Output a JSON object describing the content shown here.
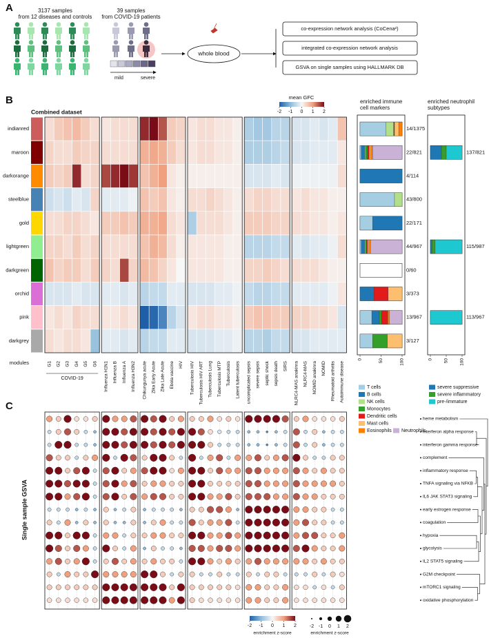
{
  "panel_labels": {
    "a": "A",
    "b": "B",
    "c": "C"
  },
  "panel_a": {
    "cohorts": [
      {
        "count": "3137 samples",
        "detail": "from 12 diseases and controls"
      },
      {
        "count": "39 samples",
        "detail": "from COVID-19 patients"
      }
    ],
    "severity": [
      "mild",
      "severe"
    ],
    "source": "whole blood",
    "analyses": [
      "co-expression network analysis (CoCena²)",
      "integrated co-expression network analysis",
      "GSVA on single samples using HALLMARK DB"
    ]
  },
  "panel_b": {
    "title": "Combined dataset",
    "colorbar": {
      "title": "mean GFC",
      "ticks": [
        -2,
        -1,
        0,
        1,
        2
      ]
    },
    "modules": [
      "indianred",
      "maroon",
      "darkorange",
      "steelblue",
      "gold",
      "lightgreen",
      "darkgreen",
      "orchid",
      "pink",
      "darkgrey"
    ],
    "modules_label": "modules",
    "covid_label": "COVID-19",
    "columns": [
      [
        "G1",
        "G2",
        "G3",
        "G4",
        "G5",
        "G6"
      ],
      [
        "Influenza H1N1",
        "Influenza B",
        "Influenza A",
        "Influenza H3N2"
      ],
      [
        "Chikungunya acute",
        "Zika Early Acute",
        "Zika Late Acute",
        "Ebola vaccine",
        "HIV"
      ],
      [
        "Tuberculosis HIV",
        "Tuberculosis HIV ART",
        "Tuberculosis Lung",
        "Tuberculosis MTP",
        "Tuberculosis",
        "Latent tuberculosis"
      ],
      [
        "uncomplicated sepsis",
        "severe sepsis",
        "septic shock",
        "sepsis death",
        "SIRS"
      ],
      [
        "NLRC4-MAS anakinra",
        "NLRC4-MAS",
        "NOMID anakinra",
        "NOMID",
        "Rheumatoid arthritis",
        "Autoimmune disease"
      ]
    ],
    "gfc": [
      [
        0.3,
        0.5,
        0.6,
        0.7,
        0.5,
        0.3,
        0.2,
        0.3,
        0.3,
        0.3,
        1.8,
        2,
        1.5,
        0.5,
        0.4,
        0.2,
        0.3,
        0.3,
        0.2,
        0.2,
        0.1,
        -0.7,
        -0.8,
        -0.8,
        -0.6,
        -0.6,
        -0.3,
        -0.3,
        -0.2,
        -0.3,
        -0.2,
        0.6
      ],
      [
        0.4,
        0.3,
        0.3,
        0.5,
        0.4,
        0.4,
        0.3,
        0.3,
        0.3,
        0.3,
        0.8,
        0.9,
        0.8,
        0.5,
        0.3,
        0.2,
        0.3,
        0.3,
        0.2,
        0.2,
        0.1,
        -0.7,
        -0.7,
        -0.7,
        -0.6,
        -0.5,
        -0.3,
        -0.3,
        -0.2,
        -0.2,
        -0.2,
        0.2
      ],
      [
        0.5,
        0.4,
        0.5,
        1.8,
        0.3,
        0.4,
        1.6,
        1.8,
        2.0,
        1.7,
        0.6,
        0.8,
        1.0,
        0.2,
        0.1,
        0.1,
        0.1,
        0.1,
        0.1,
        0.1,
        0.1,
        -0.3,
        -0.3,
        -0.3,
        -0.2,
        -0.3,
        -0.1,
        -0.1,
        -0.1,
        -0.1,
        -0.1,
        0.3
      ],
      [
        -0.4,
        -0.3,
        -0.4,
        -0.2,
        -0.3,
        0.4,
        -0.2,
        -0.2,
        -0.2,
        -0.1,
        0.6,
        0.5,
        0.6,
        0.2,
        0.1,
        0.3,
        0.3,
        0.4,
        0.3,
        0.2,
        0.1,
        0.3,
        0.4,
        0.4,
        0.3,
        0.3,
        0.2,
        0.3,
        0.2,
        0.2,
        0.1,
        0.1
      ],
      [
        0.3,
        0.3,
        0.4,
        0.4,
        0.3,
        0.2,
        0.5,
        0.5,
        0.6,
        0.5,
        0.8,
        0.8,
        0.9,
        0.3,
        0.2,
        -0.7,
        0.3,
        0.3,
        0.3,
        0.2,
        0.1,
        0.5,
        0.5,
        0.5,
        0.4,
        0.4,
        0.3,
        0.3,
        0.2,
        0.2,
        0.1,
        0.2
      ],
      [
        0.4,
        0.4,
        0.3,
        0.5,
        0.3,
        0.4,
        0.3,
        0.3,
        0.3,
        0.3,
        0.6,
        0.8,
        0.7,
        0.3,
        0.1,
        0.2,
        0.2,
        0.2,
        0.2,
        0.1,
        0.1,
        -0.6,
        -0.6,
        -0.6,
        -0.5,
        -0.5,
        -0.2,
        -0.3,
        -0.2,
        -0.2,
        -0.1,
        0.3
      ],
      [
        0.6,
        0.4,
        0.5,
        0.5,
        0.3,
        0.5,
        0.4,
        0.3,
        1.6,
        0.4,
        0.7,
        0.6,
        0.4,
        0.2,
        0.0,
        0.2,
        0.2,
        0.2,
        0.2,
        0.1,
        0.1,
        0.4,
        0.4,
        0.5,
        0.4,
        0.3,
        0.3,
        0.3,
        0.3,
        0.2,
        0.1,
        0.1
      ],
      [
        -0.3,
        -0.3,
        -0.3,
        -0.2,
        -0.3,
        -0.3,
        -0.2,
        -0.2,
        -0.3,
        -0.2,
        -0.6,
        -0.5,
        -0.5,
        -0.2,
        -0.2,
        -0.3,
        -0.3,
        -0.3,
        -0.2,
        -0.2,
        -0.1,
        -0.5,
        -0.6,
        -0.6,
        -0.5,
        -0.5,
        -0.2,
        -0.2,
        -0.2,
        -0.2,
        -0.1,
        0.2
      ],
      [
        0.2,
        0.3,
        0.2,
        0.4,
        0.3,
        0.3,
        0.2,
        0.2,
        0.3,
        0.2,
        -2.0,
        -1.9,
        -1.6,
        -0.6,
        -0.3,
        0.2,
        0.3,
        0.3,
        0.2,
        0.2,
        0.1,
        0.5,
        0.6,
        0.6,
        0.5,
        0.5,
        0.4,
        0.4,
        0.3,
        0.3,
        0.2,
        -0.3
      ],
      [
        0.3,
        0.2,
        0.3,
        0.3,
        0.2,
        -0.9,
        -0.2,
        -0.2,
        -0.3,
        -0.2,
        -0.6,
        -0.5,
        -0.5,
        -0.2,
        -0.2,
        -0.3,
        -0.3,
        -0.3,
        -0.2,
        -0.2,
        -0.1,
        -0.6,
        -0.6,
        -0.7,
        -0.5,
        -0.5,
        -0.3,
        -0.3,
        -0.2,
        -0.2,
        -0.2,
        -0.2
      ]
    ],
    "immune": {
      "title": "enriched immune cell markers",
      "axis_ticks": [
        0,
        50,
        100
      ],
      "cell_types": [
        {
          "name": "T cells",
          "color": "#a6cee3"
        },
        {
          "name": "B cells",
          "color": "#1f78b4"
        },
        {
          "name": "NK cells",
          "color": "#b2df8a"
        },
        {
          "name": "Monocytes",
          "color": "#33a02c"
        },
        {
          "name": "Dendritic cells",
          "color": "#e31a1c"
        },
        {
          "name": "Mast cells",
          "color": "#fdbf6f"
        },
        {
          "name": "Eosinophils",
          "color": "#ff7f00"
        },
        {
          "name": "Neutrophils",
          "color": "#cab2d6"
        }
      ],
      "counts": [
        "14/1375",
        "22/821",
        "4/114",
        "43/800",
        "22/171",
        "44/967",
        "0/60",
        "3/373",
        "13/967",
        "3/127"
      ],
      "fractions": [
        [
          62,
          0,
          18,
          0,
          2,
          10,
          8,
          0
        ],
        [
          3,
          8,
          2,
          5,
          4,
          4,
          4,
          70
        ],
        [
          0,
          100,
          0,
          0,
          0,
          0,
          0,
          0
        ],
        [
          82,
          0,
          18,
          0,
          0,
          0,
          0,
          0
        ],
        [
          30,
          70,
          0,
          0,
          0,
          0,
          0,
          0
        ],
        [
          3,
          8,
          2,
          3,
          2,
          3,
          4,
          75
        ],
        [
          0,
          0,
          0,
          0,
          0,
          0,
          0,
          0
        ],
        [
          0,
          33,
          0,
          0,
          34,
          33,
          0,
          0
        ],
        [
          28,
          18,
          0,
          5,
          15,
          0,
          4,
          30
        ],
        [
          30,
          0,
          0,
          35,
          0,
          35,
          0,
          0
        ]
      ]
    },
    "neutrophil": {
      "title": "enriched neutrophil subtypes",
      "axis_ticks": [
        0,
        50,
        100
      ],
      "subtypes": [
        {
          "name": "severe suppressive",
          "color": "#1f78b4"
        },
        {
          "name": "severe inflammatory",
          "color": "#33a02c"
        },
        {
          "name": "pre-/immature",
          "color": "#1ec8d0"
        }
      ],
      "counts": [
        null,
        "137/821",
        null,
        null,
        null,
        "115/987",
        null,
        null,
        "113/967",
        null
      ],
      "fractions": [
        null,
        [
          35,
          15,
          50
        ],
        null,
        null,
        null,
        [
          5,
          10,
          85
        ],
        null,
        null,
        [
          0,
          0,
          100
        ],
        null
      ]
    }
  },
  "panel_c": {
    "y_label": "Single sample GSVA",
    "pathways": [
      "heme metabolism",
      "interferon alpha response",
      "interferon gamma response",
      "complement",
      "inflammatory response",
      "TNFA signaling via NFKB",
      "IL6 JAK STAT3 signaling",
      "early estrogen response",
      "coagulation",
      "hypoxia",
      "glycolysis",
      "IL2 STAT5 signaling",
      "G2M checkpoint",
      "mTORC1 signaling",
      "oxidative phosphorylation"
    ],
    "zscores": [
      [
        1,
        0.5,
        2,
        0.3,
        0.3,
        0.5,
        2,
        1,
        1,
        1.5,
        2,
        1.5,
        2,
        0.5,
        1,
        0.5,
        0.5,
        1,
        0.3,
        0.5,
        0.3,
        2,
        2,
        2,
        2,
        1.5,
        0.5,
        1,
        0.3,
        0.3,
        0.3,
        0.5
      ],
      [
        -0.5,
        0.5,
        1.5,
        0.5,
        -0.5,
        -1,
        2,
        2,
        1.5,
        2,
        2,
        1.5,
        2,
        1.5,
        2,
        2,
        1.5,
        0.3,
        -0.3,
        -0.5,
        -0.5,
        -1,
        -1,
        -1.5,
        -1,
        -0.5,
        1.5,
        -0.5,
        0.5,
        -1,
        -0.5,
        -0.5
      ],
      [
        -0.5,
        2,
        2,
        -0.5,
        -0.5,
        -1,
        2,
        2,
        1.5,
        2,
        2,
        1.5,
        2,
        1.5,
        2,
        2,
        2,
        0.5,
        -0.5,
        -0.5,
        -0.5,
        -1,
        -1,
        -1.5,
        -1,
        -0.5,
        1.5,
        -0.5,
        0.5,
        -1,
        -0.5,
        -0.5
      ],
      [
        1.5,
        0.5,
        0.5,
        -0.5,
        0.5,
        1,
        2,
        -0.5,
        2,
        1.5,
        0.5,
        2,
        2,
        0.5,
        -0.5,
        2,
        -0.5,
        1,
        1.5,
        -0.5,
        1,
        1,
        1.5,
        0.5,
        1,
        1.5,
        2,
        0.5,
        -0.5,
        -0.5,
        0.5,
        0.5
      ],
      [
        2,
        2,
        0.5,
        1.5,
        2,
        -0.5,
        1.5,
        2,
        0.5,
        1,
        1.5,
        2,
        2,
        0.3,
        1,
        2,
        2,
        0.5,
        1.5,
        1,
        1,
        1.5,
        1.5,
        1,
        1,
        1,
        1.5,
        1,
        0.5,
        1,
        0.5,
        0.5
      ],
      [
        2,
        2,
        1.5,
        2,
        2,
        -0.5,
        1.5,
        2,
        1,
        1.5,
        0.5,
        1,
        1,
        0.5,
        0.5,
        2,
        2,
        0.5,
        0.5,
        0.5,
        0.5,
        1.5,
        1.5,
        1,
        1,
        1,
        1.5,
        1,
        1,
        1,
        1,
        0.5
      ],
      [
        2,
        2,
        1,
        1.5,
        2,
        -0.5,
        1.5,
        2,
        0.5,
        1.5,
        1,
        1.5,
        1.5,
        0.5,
        0.5,
        2,
        2,
        1,
        1,
        1.5,
        0.5,
        1.5,
        1.5,
        1.5,
        1,
        1,
        1.5,
        1,
        1,
        0.5,
        0.5,
        0.5
      ],
      [
        -0.5,
        -0.5,
        -0.5,
        -1,
        -0.5,
        -1,
        0.5,
        -1,
        -0.5,
        0.5,
        -1,
        -0.5,
        -0.5,
        -0.5,
        -1,
        0.5,
        0.5,
        1.5,
        1.5,
        1,
        -1,
        2,
        2,
        2,
        2,
        2,
        1,
        1,
        0.5,
        0.5,
        -0.5,
        -0.5
      ],
      [
        0.5,
        -0.5,
        1,
        -1,
        0.5,
        -1,
        0.5,
        -1,
        -1,
        0.5,
        -1,
        0.5,
        1,
        -0.5,
        -0.5,
        1.5,
        0.5,
        1,
        1,
        1.5,
        -0.5,
        2,
        2,
        2,
        2,
        2,
        1,
        1.5,
        0.5,
        0.5,
        -0.5,
        -0.5
      ],
      [
        2,
        2,
        0.5,
        2,
        2,
        -0.5,
        1,
        1,
        -0.5,
        0.5,
        0.5,
        1,
        1,
        0.5,
        0.5,
        2,
        2,
        1,
        1,
        1.5,
        1,
        2,
        2,
        2,
        2,
        2,
        1,
        1.5,
        1.5,
        0.5,
        0.5,
        1
      ],
      [
        2,
        1.5,
        0.5,
        1.5,
        1,
        -0.5,
        2,
        0.5,
        -0.5,
        1,
        -1,
        0.5,
        -0.5,
        -0.5,
        -1,
        1.5,
        1.5,
        1,
        1.5,
        1.5,
        1,
        2,
        2,
        2,
        2,
        2,
        1.5,
        2,
        1,
        0.5,
        0.5,
        1
      ],
      [
        1,
        1.5,
        0.5,
        1,
        2,
        -0.5,
        0.5,
        1.5,
        0.5,
        1,
        0.5,
        1,
        0.5,
        0.5,
        -0.5,
        2,
        2,
        1,
        0.5,
        1,
        0.5,
        1,
        1.5,
        1,
        1,
        1,
        1,
        1,
        0.5,
        1,
        0.5,
        0.5
      ],
      [
        0.5,
        -0.5,
        1,
        0.5,
        0.5,
        2,
        1,
        1,
        1,
        1,
        2,
        2,
        0.5,
        -0.5,
        0.5,
        0.5,
        -0.5,
        -0.5,
        0.5,
        -0.5,
        -0.5,
        0.5,
        -0.5,
        0.5,
        0.5,
        -0.5,
        -0.5,
        -0.5,
        0.5,
        -0.5,
        0.5,
        0.3
      ],
      [
        0.5,
        0.5,
        0.5,
        0.5,
        0.5,
        0.5,
        2,
        2,
        2,
        2,
        2,
        2,
        2,
        0.5,
        2,
        0.5,
        0.5,
        0.5,
        0.5,
        0.5,
        0.3,
        1,
        1,
        0.5,
        0.5,
        1,
        0.3,
        0.3,
        -0.5,
        0.3,
        -0.5,
        0.5
      ],
      [
        0.3,
        0.3,
        0.3,
        0.3,
        0.3,
        0.3,
        2,
        2,
        2,
        2,
        2,
        2,
        2,
        1,
        2,
        0.5,
        0.3,
        0.3,
        0.3,
        0.3,
        0.3,
        1,
        1,
        0.5,
        0.5,
        1,
        0.3,
        0.3,
        0.3,
        0.3,
        0.3,
        0.3
      ]
    ],
    "color_legend": {
      "title": "enrichment z-score",
      "ticks": [
        -2,
        -1,
        0,
        1,
        2
      ]
    },
    "size_legend": {
      "title": "enrichment z-score",
      "ticks": [
        -2,
        -1,
        0,
        1,
        2
      ]
    }
  }
}
